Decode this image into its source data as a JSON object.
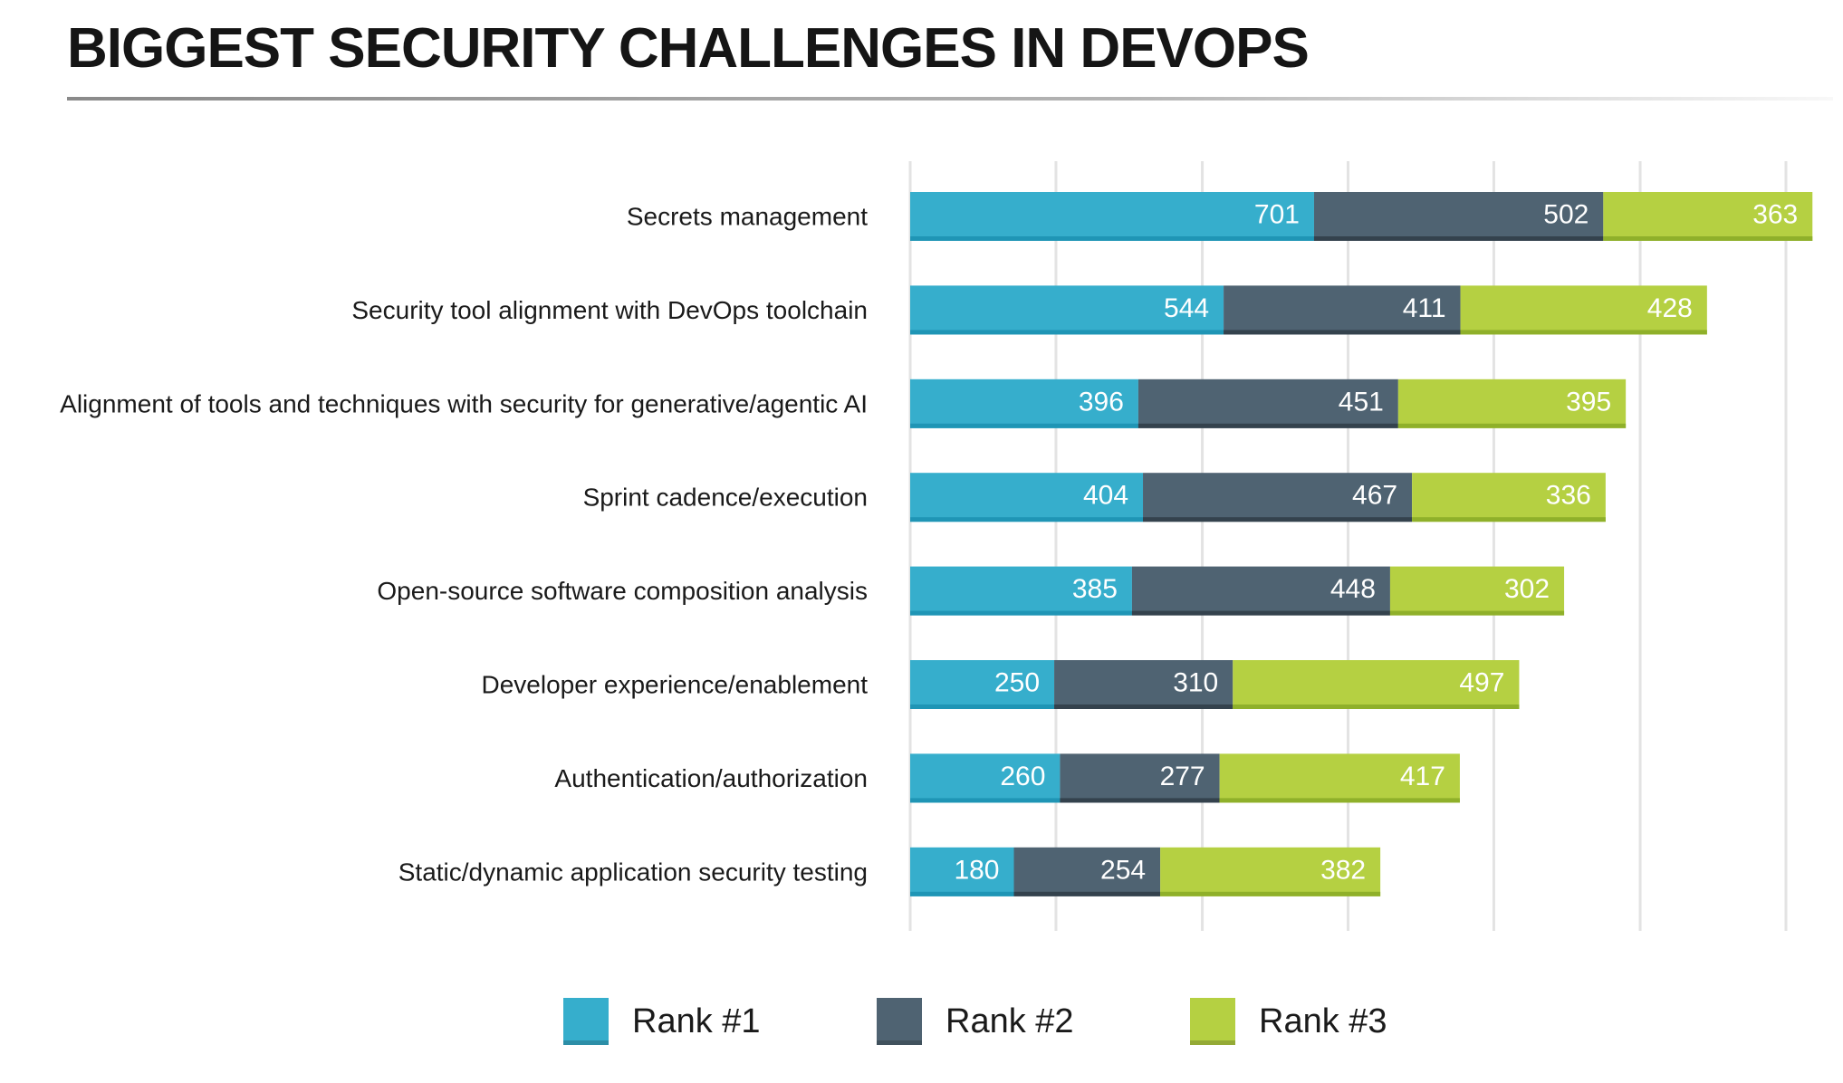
{
  "title": "BIGGEST SECURITY CHALLENGES IN DEVOPS",
  "colors": {
    "rank1": "#36aecc",
    "rank2": "#4f6372",
    "rank3": "#b5d042",
    "grid": "#e3e3e3",
    "rank1_edge": "#1f95b5",
    "rank2_edge": "#34424d",
    "rank3_edge": "#8fb02a"
  },
  "legend": [
    {
      "label": "Rank #1",
      "color_key": "rank1"
    },
    {
      "label": "Rank #2",
      "color_key": "rank2"
    },
    {
      "label": "Rank #3",
      "color_key": "rank3"
    }
  ],
  "chart_data": {
    "type": "bar",
    "orientation": "horizontal",
    "stacked": true,
    "title": "BIGGEST SECURITY CHALLENGES IN DEVOPS",
    "categories": [
      "Secrets management",
      "Security tool alignment with DevOps toolchain",
      "Alignment of tools and techniques with security for generative/agentic AI",
      "Sprint cadence/execution",
      "Open-source software composition analysis",
      "Developer experience/enablement",
      "Authentication/authorization",
      "Static/dynamic application security testing"
    ],
    "series": [
      {
        "name": "Rank #1",
        "values": [
          701,
          544,
          396,
          404,
          385,
          250,
          260,
          180
        ]
      },
      {
        "name": "Rank #2",
        "values": [
          502,
          411,
          451,
          467,
          448,
          310,
          277,
          254
        ]
      },
      {
        "name": "Rank #3",
        "values": [
          363,
          428,
          395,
          336,
          302,
          497,
          417,
          382
        ]
      }
    ],
    "xlim": [
      0,
      1520
    ],
    "x_gridlines": [
      0,
      253,
      507,
      760,
      1013,
      1267,
      1520
    ],
    "grid": true,
    "xlabel": "",
    "ylabel": "",
    "legend_position": "bottom",
    "data_labels": true
  }
}
